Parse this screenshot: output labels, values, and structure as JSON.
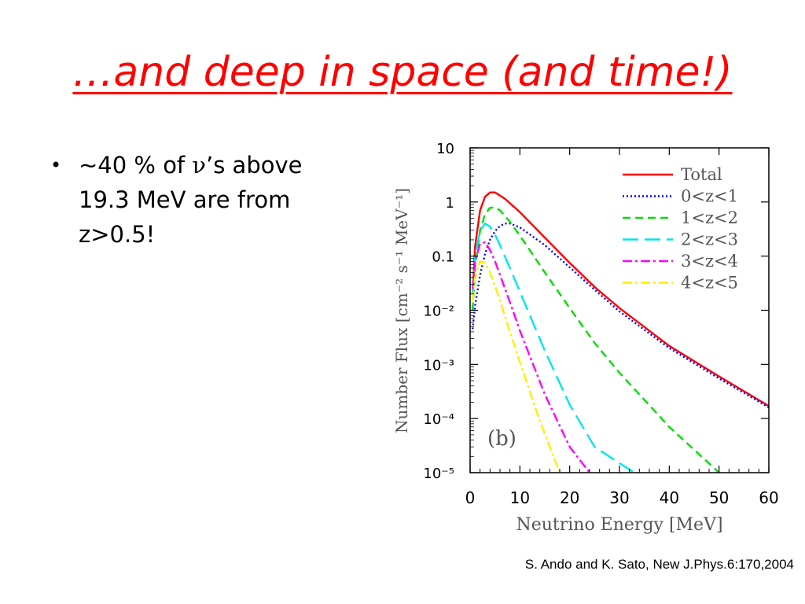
{
  "slide": {
    "title": "…and deep in space (and time!)",
    "bullet": {
      "prefix": "~40 % of ",
      "symbol": "ν",
      "suffix": "’s above 19.3 MeV are from z>0.5!"
    },
    "citation": "S. Ando and K. Sato, New J.Phys.6:170,2004",
    "colors": {
      "title": "#ff0000",
      "text": "#000000"
    }
  },
  "chart_data": {
    "type": "line",
    "title": "",
    "panel_label": "(b)",
    "xlabel": "Neutrino Energy [MeV]",
    "ylabel": "Number Flux [cm⁻² s⁻¹ MeV⁻¹]",
    "xlim": [
      0,
      60
    ],
    "ylim": [
      1e-05,
      10
    ],
    "yscale": "log",
    "x_ticks": [
      "0",
      "10",
      "20",
      "30",
      "40",
      "50",
      "60"
    ],
    "y_ticks": [
      "10",
      "1",
      "0.1",
      "10⁻²",
      "10⁻³",
      "10⁻⁴",
      "10⁻⁵"
    ],
    "legend_position": "top-right",
    "series": [
      {
        "name": "Total",
        "color": "#ff0000",
        "dash": "solid",
        "x": [
          0.5,
          1,
          2,
          3,
          4,
          5,
          7,
          10,
          15,
          20,
          25,
          30,
          40,
          50,
          60
        ],
        "y": [
          0.02,
          0.15,
          0.7,
          1.25,
          1.5,
          1.5,
          1.15,
          0.65,
          0.22,
          0.075,
          0.027,
          0.011,
          0.0022,
          0.0006,
          0.00017
        ]
      },
      {
        "name": "0<z<1",
        "color": "#0000ff",
        "dash": "dotted",
        "x": [
          0.5,
          1,
          2,
          3,
          4,
          5,
          6,
          7,
          8,
          10,
          15,
          20,
          25,
          30,
          40,
          50,
          60
        ],
        "y": [
          0.0045,
          0.012,
          0.045,
          0.11,
          0.2,
          0.29,
          0.36,
          0.4,
          0.4,
          0.34,
          0.16,
          0.062,
          0.024,
          0.0095,
          0.002,
          0.00055,
          0.00016
        ]
      },
      {
        "name": "1<z<2",
        "color": "#00dd00",
        "dash": "dashed",
        "x": [
          0.5,
          1,
          2,
          3,
          4,
          5,
          6,
          8,
          10,
          15,
          20,
          25,
          30,
          40,
          50
        ],
        "y": [
          0.01,
          0.06,
          0.3,
          0.6,
          0.78,
          0.8,
          0.7,
          0.43,
          0.24,
          0.05,
          0.011,
          0.0025,
          0.0007,
          7e-05,
          1e-05
        ]
      },
      {
        "name": "2<z<3",
        "color": "#00e5ee",
        "dash": "long-dash",
        "x": [
          0.5,
          1,
          2,
          3,
          4,
          5,
          6,
          8,
          10,
          15,
          20,
          25,
          30,
          33
        ],
        "y": [
          0.02,
          0.1,
          0.3,
          0.4,
          0.35,
          0.25,
          0.16,
          0.06,
          0.022,
          0.0018,
          0.00018,
          3e-05,
          1.5e-05,
          1e-05
        ]
      },
      {
        "name": "3<z<4",
        "color": "#ff00ff",
        "dash": "dash-dot",
        "x": [
          0.5,
          1,
          2,
          3,
          4,
          5,
          6,
          8,
          10,
          15,
          20,
          24
        ],
        "y": [
          0.025,
          0.08,
          0.17,
          0.18,
          0.13,
          0.08,
          0.045,
          0.014,
          0.0042,
          0.00028,
          3e-05,
          1e-05
        ]
      },
      {
        "name": "4<z<5",
        "color": "#ffee00",
        "dash": "dash-dot",
        "x": [
          0.5,
          1,
          2,
          3,
          4,
          5,
          6,
          8,
          10,
          14,
          18
        ],
        "y": [
          0.015,
          0.04,
          0.08,
          0.075,
          0.05,
          0.028,
          0.015,
          0.004,
          0.0011,
          9e-05,
          1e-05
        ]
      }
    ]
  }
}
